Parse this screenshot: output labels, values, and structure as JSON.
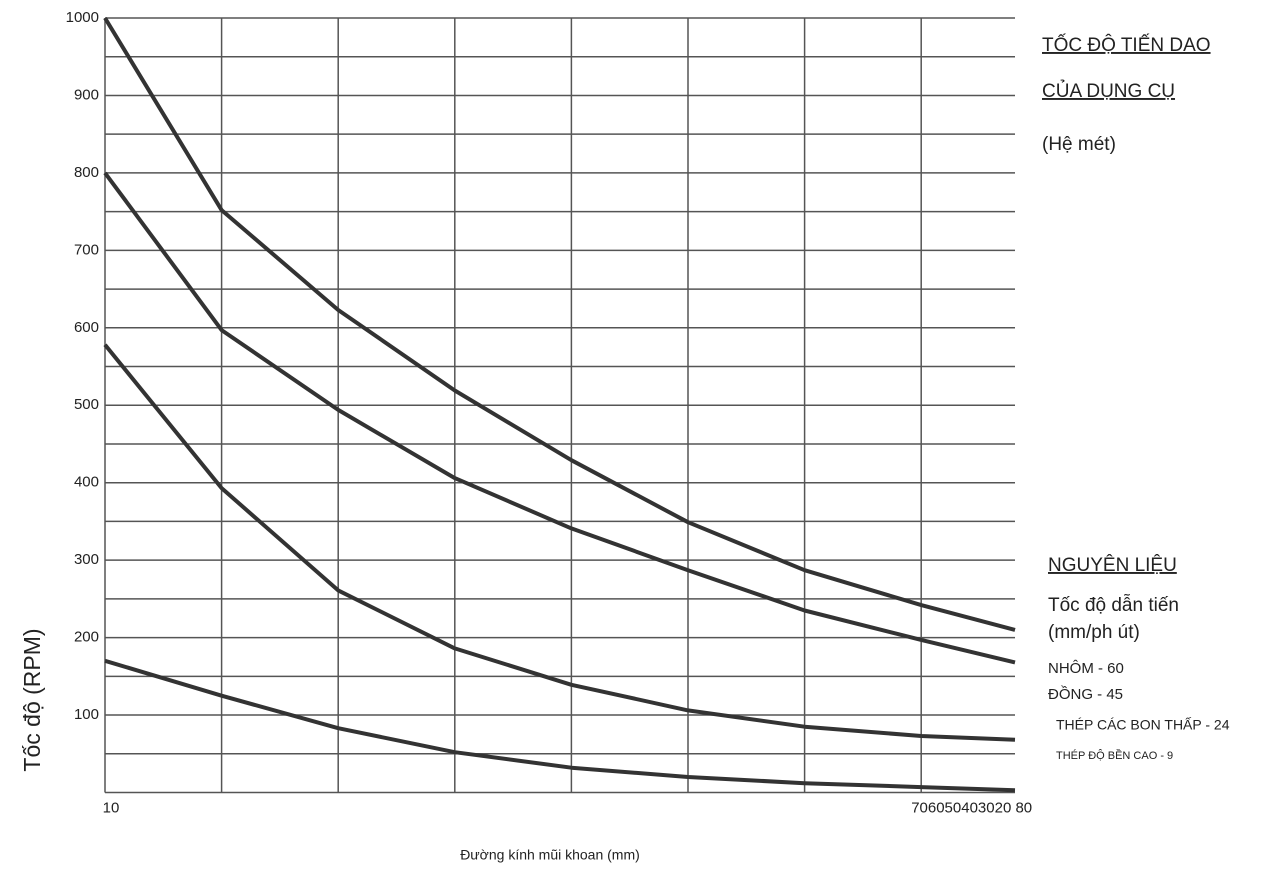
{
  "chart_data": {
    "type": "line",
    "title": "TỐC ĐỘ   TIẾN DAO",
    "subtitle": "CỦA DỤNG CỤ",
    "unit_note": "(Hệ    mét)",
    "legend_title": "NGUYÊN LIỆU",
    "legend_subtitle": "Tốc độ dẫn tiến",
    "legend_unit": "(mm/ph út)",
    "x_label": "Đường kính mũi khoan (mm)",
    "y_label": "Tốc độ    (RPM)",
    "categories": [
      "10",
      null,
      null,
      null,
      null,
      null,
      null,
      "706050403020 80",
      null
    ],
    "series": [
      {
        "name": "NHÔM - 60",
        "color": "#333333",
        "values": [
          1000,
          752,
          623,
          519,
          429,
          349,
          287,
          242,
          210
        ]
      },
      {
        "name": "ĐỒNG - 45",
        "color": "#333333",
        "values": [
          800,
          597,
          494,
          406,
          341,
          287,
          235,
          197,
          168
        ]
      },
      {
        "name": "THÉP CÁC BON THẤP - 24",
        "color": "#333333",
        "values": [
          578,
          393,
          261,
          186,
          139,
          106,
          85,
          73,
          68
        ]
      },
      {
        "name": "THÉP ĐỘ BỀN CAO - 9",
        "color": "#333333",
        "values": [
          170,
          125,
          83,
          52,
          32,
          20,
          12,
          7,
          3
        ]
      }
    ],
    "ylim": [
      0,
      1000
    ],
    "yticks": [
      100,
      200,
      300,
      400,
      500,
      600,
      700,
      800,
      900,
      1000
    ],
    "y_minor_ticks": [
      50,
      150,
      250,
      350,
      450,
      550,
      650,
      750,
      850,
      950
    ],
    "grid": true
  }
}
